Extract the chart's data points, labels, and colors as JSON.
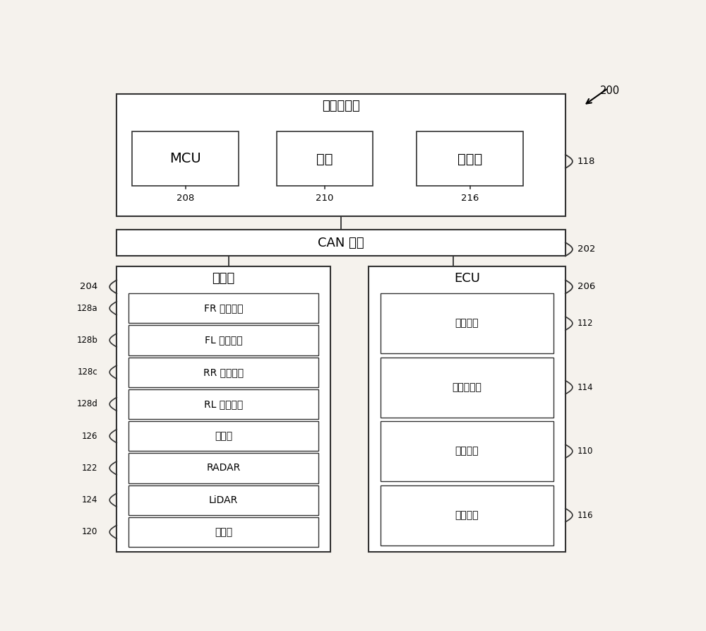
{
  "bg_color": "#f5f2ed",
  "box_color": "#ffffff",
  "box_edge": "#333333",
  "line_color": "#333333",
  "title_200": "200",
  "label_118": "118",
  "label_202": "202",
  "label_204": "204",
  "label_206": "206",
  "label_208": "208",
  "label_210": "210",
  "label_216": "216",
  "label_112": "112",
  "label_114": "114",
  "label_110": "110",
  "label_116": "116",
  "label_128a": "128a",
  "label_128b": "128b",
  "label_128c": "128c",
  "label_128d": "128d",
  "label_126": "126",
  "label_122": "122",
  "label_124": "124",
  "label_120": "120",
  "text_luoyan": "路沿检测器",
  "text_MCU": "MCU",
  "text_neicun": "内存",
  "text_cunchuqi": "存储器",
  "text_CAN": "CAN 总线",
  "text_chuanganqi": "传感器",
  "text_ECU": "ECU",
  "text_FR": "FR 车轮转速",
  "text_FL": "FL 车轮转速",
  "text_RR": "RR 车轮转速",
  "text_RL": "RL 车轮转速",
  "text_hengyaolv": "横摇率",
  "text_RADAR": "RADAR",
  "text_LiDAR": "LiDAR",
  "text_chaoshengbo": "超声波",
  "text_zhuanxiang": "转向控制",
  "text_jieqimen": "节气门控制",
  "text_tingche": "停车辅助",
  "text_zhidong": "制动控制"
}
